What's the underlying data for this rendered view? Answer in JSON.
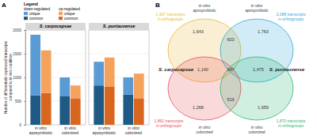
{
  "chart_data": {
    "type": "bar",
    "stacked": true,
    "panel_label": "A",
    "y_label": "Number of differentially expressed transcripts compared to in vivo condition",
    "ylim": [
      0,
      2000
    ],
    "yticks": [
      0,
      500,
      1000,
      1500,
      2000
    ],
    "grid": true,
    "legend": "top-left",
    "legend_title": "Legend",
    "facets": [
      "S. carpocapsae",
      "S. puntauvense"
    ],
    "categories": [
      "in vitro aposymbiotic",
      "in vitro colonized"
    ],
    "groups": [
      {
        "name": "down-regulated",
        "series": [
          {
            "name": "common",
            "color": "#1f5a85",
            "values": [
              [
                620,
                600
              ],
              [
                830,
                640
              ]
            ]
          },
          {
            "name": "unique",
            "color": "#5b9bd5",
            "values": [
              [
                1280,
                400
              ],
              [
                500,
                360
              ]
            ]
          }
        ]
      },
      {
        "name": "up-regulated",
        "series": [
          {
            "name": "common",
            "color": "#d9661f",
            "values": [
              [
                670,
                560
              ],
              [
                800,
                560
              ]
            ]
          },
          {
            "name": "unique",
            "color": "#f5a25d",
            "values": [
              [
                900,
                270
              ],
              [
                620,
                520
              ]
            ]
          }
        ]
      }
    ]
  },
  "diagram": {
    "panel_label": "B",
    "species": [
      "S. carpocapsae",
      "S. puntauvense"
    ],
    "sets": [
      {
        "condition": "in vitro aposymbiotic",
        "total": "1,907 transcripts in orthogroups",
        "color": "#e8b830"
      },
      {
        "condition": "in vitro aposymbiotic",
        "total": "2,088 transcripts in orthogroups",
        "color": "#2fa8d8"
      },
      {
        "condition": "in vitro colonized",
        "total": "1,861 transcripts in orthogroups",
        "color": "#e8505b"
      },
      {
        "condition": "in vitro colonized",
        "total": "1,870 transcripts in orthogroups",
        "color": "#2bb673"
      }
    ],
    "regions": [
      "1,643",
      "1,763",
      "603",
      "1,140",
      "347",
      "1,475",
      "1,268",
      "519",
      "1,659"
    ]
  }
}
